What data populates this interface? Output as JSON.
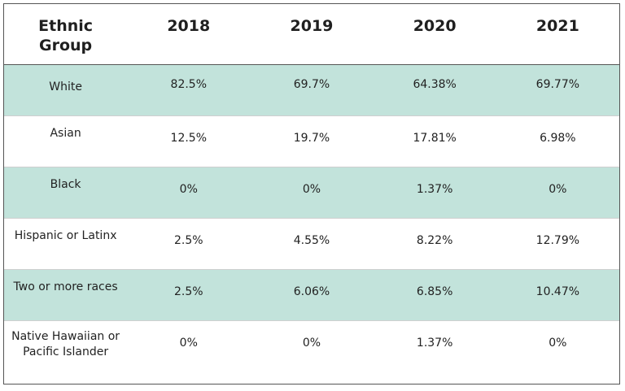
{
  "chart_data": {
    "type": "table",
    "columns": [
      "Ethnic\nGroup",
      "2018",
      "2019",
      "2020",
      "2021"
    ],
    "rows": [
      {
        "group": "White",
        "values": [
          "82.5%",
          "69.7%",
          "64.38%",
          "69.77%"
        ]
      },
      {
        "group": "Asian",
        "values": [
          "12.5%",
          "19.7%",
          "17.81%",
          "6.98%"
        ]
      },
      {
        "group": "Black",
        "values": [
          "0%",
          "0%",
          "1.37%",
          "0%"
        ]
      },
      {
        "group": "Hispanic or Latinx",
        "values": [
          "2.5%",
          "4.55%",
          "8.22%",
          "12.79%"
        ]
      },
      {
        "group": "Two or more races",
        "values": [
          "2.5%",
          "6.06%",
          "6.85%",
          "10.47%"
        ]
      },
      {
        "group": "Native Hawaiian or Pacific Islander",
        "values": [
          "0%",
          "0%",
          "1.37%",
          "0%"
        ]
      }
    ],
    "row_shading": "alternating",
    "colors": {
      "shaded_row": "#c2e3db",
      "plain_row": "#ffffff",
      "border": "#555555",
      "text": "#222222"
    }
  }
}
